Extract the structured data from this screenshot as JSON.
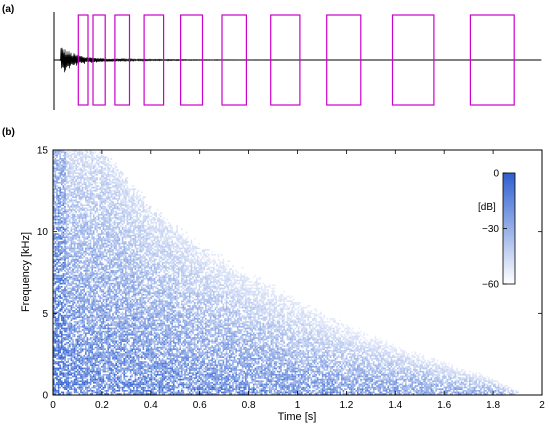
{
  "panel_a": {
    "label": "(a)"
  },
  "panel_b": {
    "label": "(b)"
  },
  "colors": {
    "waveform": "#000000",
    "window_box": "#cc00cc",
    "spectrogram": "#2e5fd0",
    "axis": "#000000"
  },
  "chart_data": [
    {
      "type": "line",
      "panel": "(a)",
      "description_series": "impulse-response waveform with analysis windows",
      "series": [
        {
          "values": "decaying oscillation, sharp onset near the start"
        }
      ],
      "windows": [
        {
          "start": 0.1,
          "end": 0.14
        },
        {
          "start": 0.16,
          "end": 0.21
        },
        {
          "start": 0.25,
          "end": 0.31
        },
        {
          "start": 0.37,
          "end": 0.45
        },
        {
          "start": 0.52,
          "end": 0.61
        },
        {
          "start": 0.69,
          "end": 0.79
        },
        {
          "start": 0.89,
          "end": 1.01
        },
        {
          "start": 1.12,
          "end": 1.26
        },
        {
          "start": 1.39,
          "end": 1.56
        },
        {
          "start": 1.71,
          "end": 1.89
        }
      ]
    },
    {
      "type": "heatmap",
      "panel": "(b)",
      "xlabel": "Time [s]",
      "ylabel": "Frequency [kHz]",
      "xlim": [
        0,
        2
      ],
      "ylim": [
        0,
        15
      ],
      "x_ticks": [
        "0",
        "0.2",
        "0.4",
        "0.6",
        "0.8",
        "1",
        "1.2",
        "1.4",
        "1.6",
        "1.8",
        "2"
      ],
      "x_tick_values": [
        0,
        0.2,
        0.4,
        0.6,
        0.8,
        1.0,
        1.2,
        1.4,
        1.6,
        1.8,
        2.0
      ],
      "y_ticks": [
        "0",
        "5",
        "10",
        "15"
      ],
      "y_tick_values": [
        0,
        5,
        10,
        15
      ],
      "decay_edge": [
        {
          "t": 0.05,
          "f": 15
        },
        {
          "t": 0.2,
          "f": 14.5
        },
        {
          "t": 0.4,
          "f": 11
        },
        {
          "t": 0.6,
          "f": 8.7
        },
        {
          "t": 0.8,
          "f": 7
        },
        {
          "t": 1.0,
          "f": 5.6
        },
        {
          "t": 1.2,
          "f": 4.3
        },
        {
          "t": 1.4,
          "f": 3.2
        },
        {
          "t": 1.6,
          "f": 2.2
        },
        {
          "t": 1.8,
          "f": 1.2
        },
        {
          "t": 1.9,
          "f": 0.3
        }
      ],
      "colorbar": {
        "label": "[dB]",
        "ticks": [
          "0",
          "−30",
          "−60"
        ],
        "tick_values": [
          0,
          -30,
          -60
        ],
        "range": [
          -60,
          0
        ]
      }
    }
  ]
}
